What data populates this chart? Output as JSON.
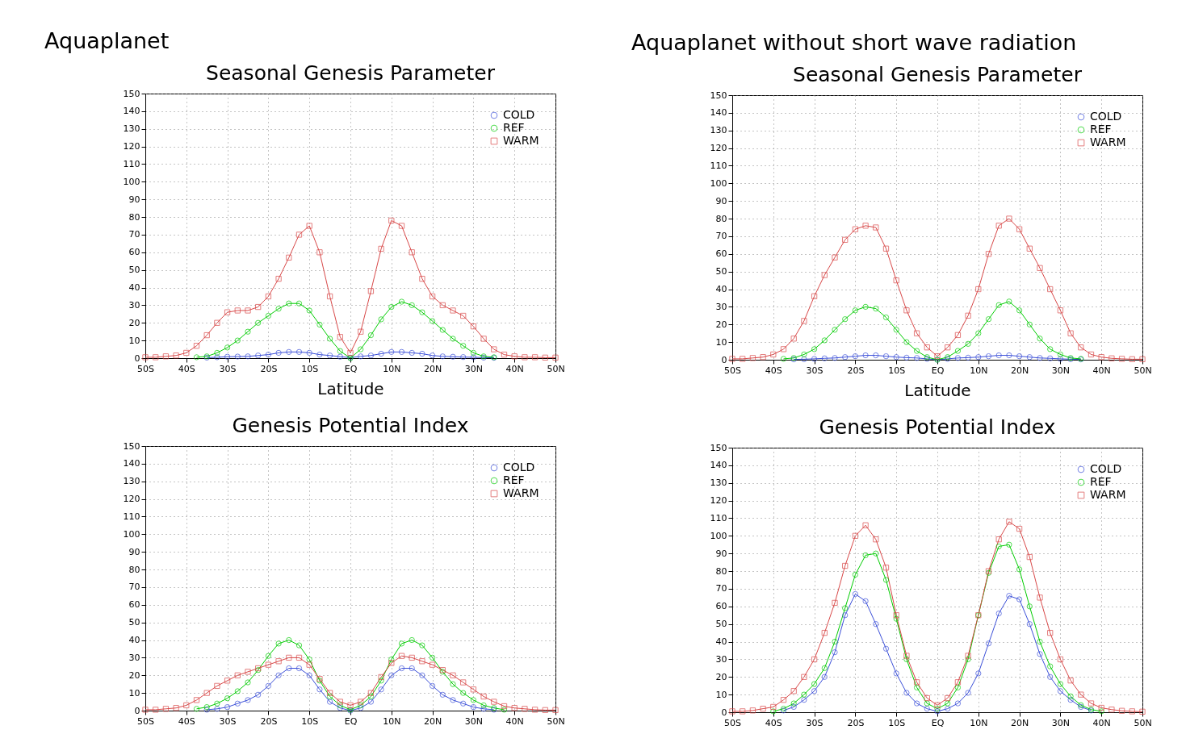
{
  "chart_data": [
    {
      "type": "line",
      "title": "Seasonal Genesis Parameter",
      "xlabel": "Latitude",
      "annotations": [
        "Aquaplanet"
      ],
      "x": [
        -50,
        -47.5,
        -45,
        -42.5,
        -40,
        -37.5,
        -35,
        -32.5,
        -30,
        -27.5,
        -25,
        -22.5,
        -20,
        -17.5,
        -15,
        -12.5,
        -10,
        -7.5,
        -5,
        -2.5,
        0,
        2.5,
        5,
        7.5,
        10,
        12.5,
        15,
        17.5,
        20,
        22.5,
        25,
        27.5,
        30,
        32.5,
        35,
        37.5,
        40,
        42.5,
        45,
        47.5,
        50
      ],
      "xlim": [
        -50,
        50
      ],
      "xticks": [
        {
          "value": -50,
          "label": "50S"
        },
        {
          "value": -40,
          "label": "40S"
        },
        {
          "value": -30,
          "label": "30S"
        },
        {
          "value": -20,
          "label": "20S"
        },
        {
          "value": -10,
          "label": "10S"
        },
        {
          "value": 0,
          "label": "EQ"
        },
        {
          "value": 10,
          "label": "10N"
        },
        {
          "value": 20,
          "label": "20N"
        },
        {
          "value": 30,
          "label": "30N"
        },
        {
          "value": 40,
          "label": "40N"
        },
        {
          "value": 50,
          "label": "50N"
        }
      ],
      "ylim": [
        0,
        150
      ],
      "yticks": [
        0,
        10,
        20,
        30,
        40,
        50,
        60,
        70,
        80,
        90,
        100,
        110,
        120,
        130,
        140,
        150
      ],
      "grid": true,
      "legend": "top right",
      "series": [
        {
          "name": "COLD",
          "color": "#3b4fd8",
          "marker": "circle",
          "values": [
            null,
            null,
            null,
            null,
            null,
            null,
            0.3,
            0.5,
            0.8,
            0.9,
            1,
            1.5,
            2,
            3,
            3.5,
            3.5,
            3,
            2,
            1.5,
            0.8,
            0.3,
            1,
            1.5,
            2.5,
            3.5,
            3.5,
            3,
            2.5,
            1.5,
            1,
            0.8,
            0.6,
            0.5,
            0.3,
            0.2,
            null,
            null,
            null,
            null,
            null,
            null
          ]
        },
        {
          "name": "REF",
          "color": "#00cc00",
          "marker": "circle",
          "values": [
            null,
            null,
            null,
            null,
            null,
            0.5,
            1,
            3,
            6,
            10,
            15,
            20,
            24,
            28,
            31,
            31,
            27,
            19,
            11,
            4,
            0,
            5,
            13,
            22,
            29,
            32,
            30,
            26,
            21,
            16,
            11,
            7,
            3,
            1,
            0.5,
            null,
            null,
            null,
            null,
            null,
            null
          ]
        },
        {
          "name": "WARM",
          "color": "#d84848",
          "marker": "square",
          "values": [
            0.5,
            0.5,
            1,
            1.5,
            3,
            7,
            13,
            20,
            26,
            27,
            27,
            29,
            35,
            45,
            57,
            70,
            75,
            60,
            35,
            12,
            3,
            15,
            38,
            62,
            78,
            75,
            60,
            45,
            35,
            30,
            27,
            24,
            18,
            11,
            5,
            2,
            1,
            0.5,
            0.5,
            0.3,
            0.3
          ]
        }
      ]
    },
    {
      "type": "line",
      "title": "Seasonal Genesis Parameter",
      "xlabel": "Latitude",
      "annotations": [
        "Aquaplanet without short wave radiation"
      ],
      "x": [
        -50,
        -47.5,
        -45,
        -42.5,
        -40,
        -37.5,
        -35,
        -32.5,
        -30,
        -27.5,
        -25,
        -22.5,
        -20,
        -17.5,
        -15,
        -12.5,
        -10,
        -7.5,
        -5,
        -2.5,
        0,
        2.5,
        5,
        7.5,
        10,
        12.5,
        15,
        17.5,
        20,
        22.5,
        25,
        27.5,
        30,
        32.5,
        35,
        37.5,
        40,
        42.5,
        45,
        47.5,
        50
      ],
      "xlim": [
        -50,
        50
      ],
      "xticks": [
        {
          "value": -50,
          "label": "50S"
        },
        {
          "value": -40,
          "label": "40S"
        },
        {
          "value": -30,
          "label": "30S"
        },
        {
          "value": -20,
          "label": "20S"
        },
        {
          "value": -10,
          "label": "10S"
        },
        {
          "value": 0,
          "label": "EQ"
        },
        {
          "value": 10,
          "label": "10N"
        },
        {
          "value": 20,
          "label": "20N"
        },
        {
          "value": 30,
          "label": "30N"
        },
        {
          "value": 40,
          "label": "40N"
        },
        {
          "value": 50,
          "label": "50N"
        }
      ],
      "ylim": [
        0,
        150
      ],
      "yticks": [
        0,
        10,
        20,
        30,
        40,
        50,
        60,
        70,
        80,
        90,
        100,
        110,
        120,
        130,
        140,
        150
      ],
      "grid": true,
      "legend": "top right",
      "series": [
        {
          "name": "COLD",
          "color": "#3b4fd8",
          "marker": "circle",
          "values": [
            null,
            null,
            null,
            null,
            null,
            null,
            0.2,
            0.3,
            0.5,
            0.8,
            1,
            1.5,
            2,
            2.5,
            2.5,
            2,
            1.5,
            1.2,
            1,
            0.5,
            0,
            0.5,
            1,
            1.2,
            1.5,
            2,
            2.5,
            2.5,
            2,
            1.5,
            1,
            0.8,
            0.5,
            0.3,
            0.2,
            null,
            null,
            null,
            null,
            null,
            null
          ]
        },
        {
          "name": "REF",
          "color": "#00cc00",
          "marker": "circle",
          "values": [
            null,
            null,
            null,
            null,
            null,
            0.5,
            1,
            3,
            6,
            11,
            17,
            23,
            28,
            30,
            29,
            24,
            17,
            10,
            5,
            1.5,
            0,
            1.5,
            5,
            9,
            15,
            23,
            31,
            33,
            28,
            20,
            12,
            6,
            3,
            1,
            0.5,
            null,
            null,
            null,
            null,
            null,
            null
          ]
        },
        {
          "name": "WARM",
          "color": "#d84848",
          "marker": "square",
          "values": [
            0.5,
            0.5,
            1,
            1.5,
            3,
            6,
            12,
            22,
            36,
            48,
            58,
            68,
            74,
            76,
            75,
            63,
            45,
            28,
            15,
            7,
            2,
            7,
            14,
            25,
            40,
            60,
            76,
            80,
            74,
            63,
            52,
            40,
            28,
            15,
            7,
            3,
            1.5,
            0.8,
            0.5,
            0.3,
            0.3
          ]
        }
      ]
    },
    {
      "type": "line",
      "title": "Genesis Potential Index",
      "x": [
        -50,
        -47.5,
        -45,
        -42.5,
        -40,
        -37.5,
        -35,
        -32.5,
        -30,
        -27.5,
        -25,
        -22.5,
        -20,
        -17.5,
        -15,
        -12.5,
        -10,
        -7.5,
        -5,
        -2.5,
        0,
        2.5,
        5,
        7.5,
        10,
        12.5,
        15,
        17.5,
        20,
        22.5,
        25,
        27.5,
        30,
        32.5,
        35,
        37.5,
        40,
        42.5,
        45,
        47.5,
        50
      ],
      "xlim": [
        -50,
        50
      ],
      "xticks": [
        {
          "value": -50,
          "label": "50S"
        },
        {
          "value": -40,
          "label": "40S"
        },
        {
          "value": -30,
          "label": "30S"
        },
        {
          "value": -20,
          "label": "20S"
        },
        {
          "value": -10,
          "label": "10S"
        },
        {
          "value": 0,
          "label": "EQ"
        },
        {
          "value": 10,
          "label": "10N"
        },
        {
          "value": 20,
          "label": "20N"
        },
        {
          "value": 30,
          "label": "30N"
        },
        {
          "value": 40,
          "label": "40N"
        },
        {
          "value": 50,
          "label": "50N"
        }
      ],
      "ylim": [
        0,
        150
      ],
      "yticks": [
        0,
        10,
        20,
        30,
        40,
        50,
        60,
        70,
        80,
        90,
        100,
        110,
        120,
        130,
        140,
        150
      ],
      "grid": true,
      "legend": "top right",
      "series": [
        {
          "name": "COLD",
          "color": "#3b4fd8",
          "marker": "circle",
          "values": [
            null,
            null,
            null,
            null,
            null,
            null,
            0.5,
            1,
            2,
            4,
            6,
            9,
            14,
            20,
            24,
            24,
            20,
            12,
            5,
            1.5,
            0,
            1.5,
            5,
            12,
            20,
            24,
            24,
            20,
            14,
            9,
            6,
            4,
            2,
            1,
            0.5,
            null,
            null,
            null,
            null,
            null,
            null
          ]
        },
        {
          "name": "REF",
          "color": "#00cc00",
          "marker": "circle",
          "values": [
            null,
            null,
            null,
            null,
            null,
            1,
            2,
            4,
            7,
            11,
            16,
            23,
            31,
            38,
            40,
            37,
            29,
            17,
            8,
            3,
            0.5,
            3,
            8,
            17,
            29,
            38,
            40,
            37,
            30,
            22,
            15,
            10,
            6,
            3,
            1.5,
            0.5,
            null,
            null,
            null,
            null,
            null
          ]
        },
        {
          "name": "WARM",
          "color": "#d84848",
          "marker": "square",
          "values": [
            0.5,
            0.5,
            1,
            1.5,
            3,
            6,
            10,
            14,
            17,
            20,
            22,
            24,
            26,
            28,
            30,
            30,
            26,
            18,
            10,
            5,
            3,
            5,
            10,
            19,
            27,
            31,
            30,
            28,
            26,
            23,
            20,
            16,
            12,
            8,
            5,
            2.5,
            1.5,
            1,
            0.5,
            0.3,
            0.3
          ]
        }
      ]
    },
    {
      "type": "line",
      "title": "Genesis Potential Index",
      "x": [
        -50,
        -47.5,
        -45,
        -42.5,
        -40,
        -37.5,
        -35,
        -32.5,
        -30,
        -27.5,
        -25,
        -22.5,
        -20,
        -17.5,
        -15,
        -12.5,
        -10,
        -7.5,
        -5,
        -2.5,
        0,
        2.5,
        5,
        7.5,
        10,
        12.5,
        15,
        17.5,
        20,
        22.5,
        25,
        27.5,
        30,
        32.5,
        35,
        37.5,
        40,
        42.5,
        45,
        47.5,
        50
      ],
      "xlim": [
        -50,
        50
      ],
      "xticks": [
        {
          "value": -50,
          "label": "50S"
        },
        {
          "value": -40,
          "label": "40S"
        },
        {
          "value": -30,
          "label": "30S"
        },
        {
          "value": -20,
          "label": "20S"
        },
        {
          "value": -10,
          "label": "10S"
        },
        {
          "value": 0,
          "label": "EQ"
        },
        {
          "value": 10,
          "label": "10N"
        },
        {
          "value": 20,
          "label": "20N"
        },
        {
          "value": 30,
          "label": "30N"
        },
        {
          "value": 40,
          "label": "40N"
        },
        {
          "value": 50,
          "label": "50N"
        }
      ],
      "ylim": [
        0,
        150
      ],
      "yticks": [
        0,
        10,
        20,
        30,
        40,
        50,
        60,
        70,
        80,
        90,
        100,
        110,
        120,
        130,
        140,
        150
      ],
      "grid": true,
      "legend": "top right",
      "series": [
        {
          "name": "COLD",
          "color": "#3b4fd8",
          "marker": "circle",
          "values": [
            null,
            null,
            null,
            null,
            null,
            1,
            3,
            7,
            12,
            20,
            34,
            55,
            67,
            63,
            50,
            36,
            22,
            11,
            5,
            2,
            0.5,
            2,
            5,
            11,
            22,
            39,
            56,
            66,
            64,
            50,
            33,
            20,
            12,
            7,
            3,
            1,
            null,
            null,
            null,
            null,
            null
          ]
        },
        {
          "name": "REF",
          "color": "#00cc00",
          "marker": "circle",
          "values": [
            null,
            null,
            null,
            null,
            0.5,
            2,
            5,
            10,
            16,
            25,
            40,
            59,
            78,
            89,
            90,
            75,
            53,
            30,
            14,
            5,
            2,
            5,
            14,
            30,
            55,
            79,
            94,
            95,
            81,
            60,
            40,
            26,
            16,
            9,
            4,
            1.5,
            0.5,
            null,
            null,
            null,
            null
          ]
        },
        {
          "name": "WARM",
          "color": "#d84848",
          "marker": "square",
          "values": [
            0.5,
            0.5,
            1,
            2,
            3,
            7,
            12,
            20,
            30,
            45,
            62,
            83,
            100,
            106,
            98,
            82,
            55,
            32,
            17,
            8,
            4,
            8,
            17,
            32,
            55,
            80,
            98,
            108,
            104,
            88,
            65,
            45,
            30,
            18,
            10,
            5,
            2.5,
            1.5,
            0.8,
            0.5,
            0.3
          ]
        }
      ]
    }
  ]
}
